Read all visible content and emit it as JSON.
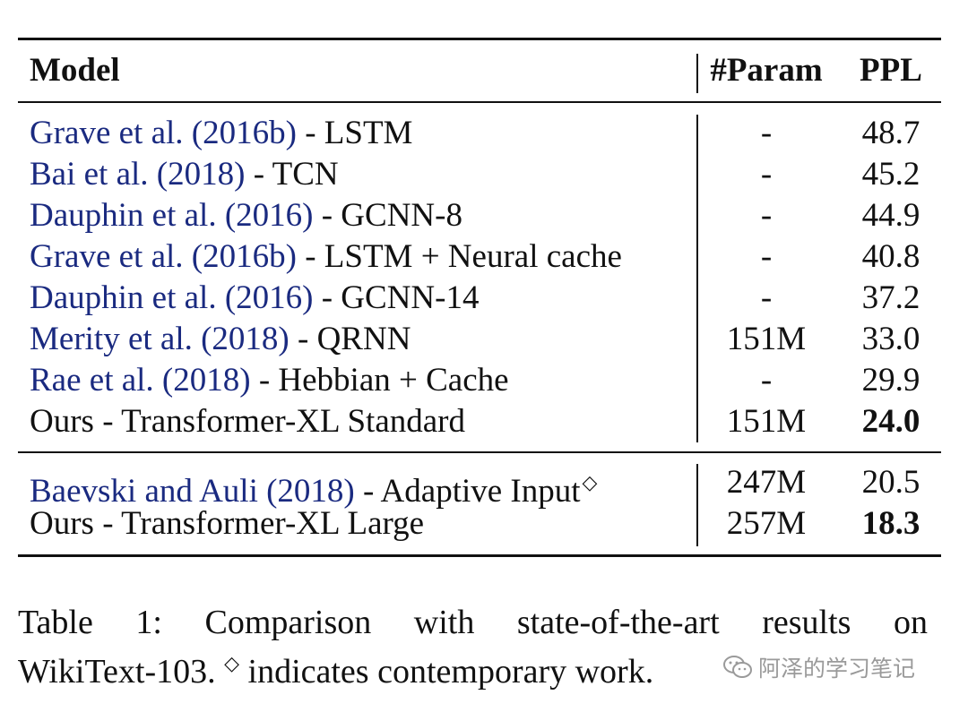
{
  "table": {
    "headers": {
      "model": "Model",
      "param": "#Param",
      "ppl": "PPL"
    },
    "group1": [
      {
        "cite": "Grave et al. (2016b)",
        "rest": " - LSTM",
        "param": "-",
        "ppl": "48.7",
        "bold": false
      },
      {
        "cite": "Bai et al. (2018)",
        "rest": " - TCN",
        "param": "-",
        "ppl": "45.2",
        "bold": false
      },
      {
        "cite": "Dauphin et al. (2016)",
        "rest": " - GCNN-8",
        "param": "-",
        "ppl": "44.9",
        "bold": false
      },
      {
        "cite": "Grave et al. (2016b)",
        "rest": " - LSTM + Neural cache",
        "param": "-",
        "ppl": "40.8",
        "bold": false
      },
      {
        "cite": "Dauphin et al. (2016)",
        "rest": " - GCNN-14",
        "param": "-",
        "ppl": "37.2",
        "bold": false
      },
      {
        "cite": "Merity et al. (2018)",
        "rest": " - QRNN",
        "param": "151M",
        "ppl": "33.0",
        "bold": false
      },
      {
        "cite": "Rae et al. (2018)",
        "rest": " - Hebbian + Cache",
        "param": "-",
        "ppl": "29.9",
        "bold": false
      },
      {
        "cite": "",
        "rest": "Ours - Transformer-XL Standard",
        "param": "151M",
        "ppl": "24.0",
        "bold": true
      }
    ],
    "group2": [
      {
        "cite": "Baevski and Auli (2018)",
        "rest": " - Adaptive Input",
        "mark": "◇",
        "param": "247M",
        "ppl": "20.5",
        "bold": false
      },
      {
        "cite": "",
        "rest": "Ours - Transformer-XL Large",
        "mark": "",
        "param": "257M",
        "ppl": "18.3",
        "bold": true
      }
    ]
  },
  "caption": {
    "line1_words": [
      "Table",
      "1:",
      "Comparison",
      "with",
      "state-of-the-art",
      "results",
      "on"
    ],
    "line2_pre": "WikiText-103.",
    "line2_mark": "◇",
    "line2_post": " indicates contemporary work."
  },
  "watermark": {
    "text": "阿泽的学习笔记",
    "icon": "wechat-icon"
  },
  "colors": {
    "citation": "#1a2a80",
    "text": "#111111",
    "watermark": "#9a9a9a"
  }
}
